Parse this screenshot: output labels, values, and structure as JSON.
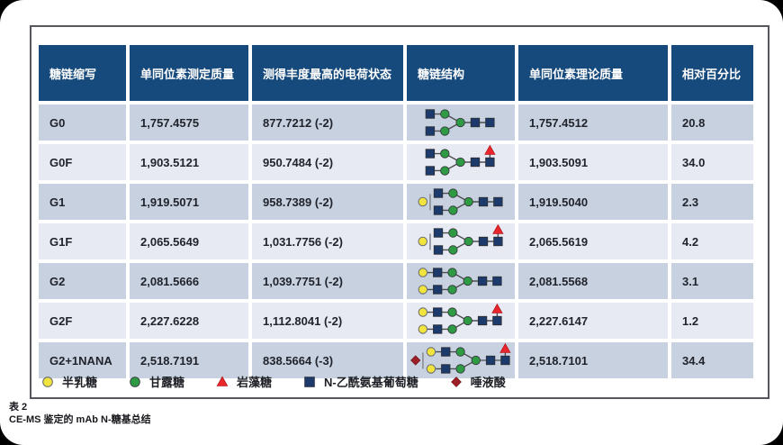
{
  "colors": {
    "header_bg": "#174a7c",
    "row_dark": "#c7d1e0",
    "row_light": "#e7eaf2",
    "frame_border": "#55575c",
    "text": "#21242c",
    "galactose": "#f2e43e",
    "mannose": "#2f9a44",
    "glcnac": "#1c3a6b",
    "fucose": "#e8262c",
    "sialic": "#9c2026",
    "connector": "#4d4f52",
    "ambiguity_bar": "#8f9399"
  },
  "table": {
    "columns": [
      "糖链缩写",
      "单同位素测定质量",
      "测得丰度最高的电荷状态",
      "糖链结构",
      "单同位素理论质量",
      "相对百分比"
    ],
    "rows": [
      {
        "abbr": "G0",
        "measured": "1,757.4575",
        "charge": "877.7212 (-2)",
        "theoretical": "1,757.4512",
        "percent": "20.8",
        "structure": {
          "prefix": [],
          "branch": [
            "glcnac",
            "mannose"
          ],
          "fucose": false
        }
      },
      {
        "abbr": "G0F",
        "measured": "1,903.5121",
        "charge": "950.7484 (-2)",
        "theoretical": "1,903.5091",
        "percent": "34.0",
        "structure": {
          "prefix": [],
          "branch": [
            "glcnac",
            "mannose"
          ],
          "fucose": true
        }
      },
      {
        "abbr": "G1",
        "measured": "1,919.5071",
        "charge": "958.7389 (-2)",
        "theoretical": "1,919.5040",
        "percent": "2.3",
        "structure": {
          "prefix": [
            "galactose"
          ],
          "branch": [
            "glcnac",
            "mannose"
          ],
          "fucose": false
        }
      },
      {
        "abbr": "G1F",
        "measured": "2,065.5649",
        "charge": "1,031.7756 (-2)",
        "theoretical": "2,065.5619",
        "percent": "4.2",
        "structure": {
          "prefix": [
            "galactose"
          ],
          "branch": [
            "glcnac",
            "mannose"
          ],
          "fucose": true
        }
      },
      {
        "abbr": "G2",
        "measured": "2,081.5666",
        "charge": "1,039.7751 (-2)",
        "theoretical": "2,081.5568",
        "percent": "3.1",
        "structure": {
          "prefix": [],
          "branch": [
            "galactose",
            "glcnac",
            "mannose"
          ],
          "fucose": false
        }
      },
      {
        "abbr": "G2F",
        "measured": "2,227.6228",
        "charge": "1,112.8041 (-2)",
        "theoretical": "2,227.6147",
        "percent": "1.2",
        "structure": {
          "prefix": [],
          "branch": [
            "galactose",
            "glcnac",
            "mannose"
          ],
          "fucose": true
        }
      },
      {
        "abbr": "G2+1NANA",
        "measured": "2,518.7191",
        "charge": "838.5664 (-3)",
        "theoretical": "2,518.7101",
        "percent": "34.4",
        "structure": {
          "prefix": [
            "sialic"
          ],
          "branch": [
            "galactose",
            "glcnac",
            "mannose"
          ],
          "fucose": true
        }
      }
    ]
  },
  "legend": {
    "items": [
      {
        "unit": "galactose",
        "label": "半乳糖"
      },
      {
        "unit": "mannose",
        "label": "甘露糖"
      },
      {
        "unit": "fucose",
        "label": "岩藻糖"
      },
      {
        "unit": "glcnac",
        "label": "N-乙酰氨基葡萄糖"
      },
      {
        "unit": "sialic",
        "label": "唾液酸"
      }
    ]
  },
  "caption": {
    "line1": "表 2",
    "line2": "CE-MS 鉴定的 mAb N-糖基总结"
  },
  "chart_data": {
    "type": "table",
    "title": "CE-MS 鉴定的 mAb N-糖基总结",
    "columns": [
      "糖链缩写",
      "单同位素测定质量",
      "测得丰度最高的电荷状态",
      "糖链结构",
      "单同位素理论质量",
      "相对百分比"
    ],
    "rows": [
      [
        "G0",
        1757.4575,
        "877.7212 (-2)",
        "GlcNAc2-Man3-GlcNAc2",
        1757.4512,
        20.8
      ],
      [
        "G0F",
        1903.5121,
        "950.7484 (-2)",
        "GlcNAc2-Man3-GlcNAc2 + fucose",
        1903.5091,
        34.0
      ],
      [
        "G1",
        1919.5071,
        "958.7389 (-2)",
        "Gal1(位置不定)-GlcNAc2-Man3-GlcNAc2",
        1919.504,
        2.3
      ],
      [
        "G1F",
        2065.5649,
        "1,031.7756 (-2)",
        "Gal1(位置不定)-GlcNAc2-Man3-GlcNAc2 + fucose",
        2065.5619,
        4.2
      ],
      [
        "G2",
        2081.5666,
        "1,039.7751 (-2)",
        "Gal2-GlcNAc2-Man3-GlcNAc2",
        2081.5568,
        3.1
      ],
      [
        "G2F",
        2227.6228,
        "1,112.8041 (-2)",
        "Gal2-GlcNAc2-Man3-GlcNAc2 + fucose",
        2227.6147,
        1.2
      ],
      [
        "G2+1NANA",
        2518.7191,
        "838.5664 (-3)",
        "NANA1(位置不定)-Gal2-GlcNAc2-Man3-GlcNAc2 + fucose",
        2518.7101,
        34.4
      ]
    ]
  }
}
